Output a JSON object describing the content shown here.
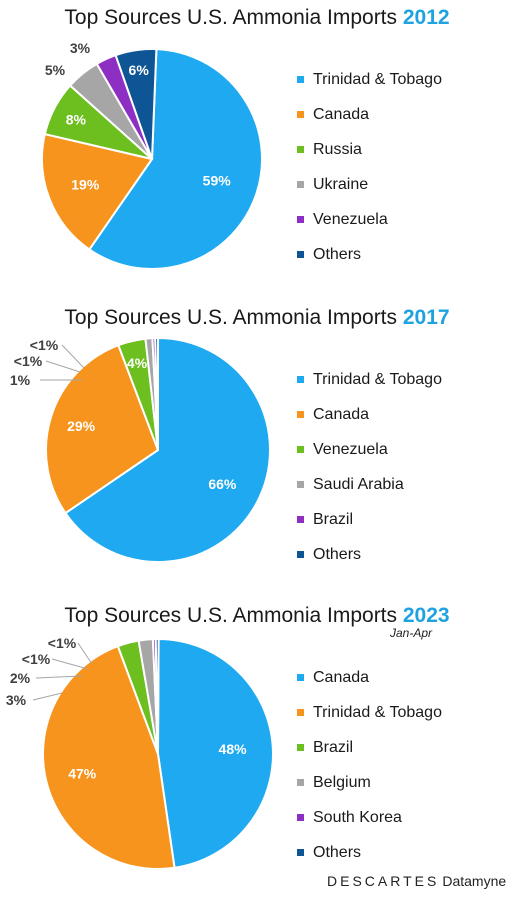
{
  "charts": [
    {
      "title": "Top Sources U.S. Ammonia Imports",
      "year": "2012",
      "subtitle": "",
      "legend": [
        {
          "label": "Trinidad & Tobago",
          "color": "#1fa9f0"
        },
        {
          "label": "Canada",
          "color": "#f7941d"
        },
        {
          "label": "Russia",
          "color": "#6cbf1f"
        },
        {
          "label": "Ukraine",
          "color": "#a6a6a6"
        },
        {
          "label": "Venezuela",
          "color": "#8e2fc4"
        },
        {
          "label": "Others",
          "color": "#0e5596"
        }
      ]
    },
    {
      "title": "Top Sources U.S. Ammonia Imports",
      "year": "2017",
      "subtitle": "",
      "legend": [
        {
          "label": "Trinidad & Tobago",
          "color": "#1fa9f0"
        },
        {
          "label": "Canada",
          "color": "#f7941d"
        },
        {
          "label": "Venezuela",
          "color": "#6cbf1f"
        },
        {
          "label": "Saudi Arabia",
          "color": "#a6a6a6"
        },
        {
          "label": "Brazil",
          "color": "#8e2fc4"
        },
        {
          "label": "Others",
          "color": "#0e5596"
        }
      ]
    },
    {
      "title": "Top Sources U.S. Ammonia Imports",
      "year": "2023",
      "subtitle": "Jan-Apr",
      "legend": [
        {
          "label": "Canada",
          "color": "#1fa9f0"
        },
        {
          "label": "Trinidad & Tobago",
          "color": "#f7941d"
        },
        {
          "label": "Brazil",
          "color": "#6cbf1f"
        },
        {
          "label": "Belgium",
          "color": "#a6a6a6"
        },
        {
          "label": "South Korea",
          "color": "#8e2fc4"
        },
        {
          "label": "Others",
          "color": "#0e5596"
        }
      ]
    }
  ],
  "chart_data": [
    {
      "type": "pie",
      "title": "Top Sources U.S. Ammonia Imports 2012",
      "legend_position": "right",
      "slices": [
        {
          "label": "Trinidad & Tobago",
          "value": 59,
          "display": "59%",
          "color": "#1fa9f0"
        },
        {
          "label": "Canada",
          "value": 19,
          "display": "19%",
          "color": "#f7941d"
        },
        {
          "label": "Russia",
          "value": 8,
          "display": "8%",
          "color": "#6cbf1f"
        },
        {
          "label": "Ukraine",
          "value": 5,
          "display": "5%",
          "color": "#a6a6a6"
        },
        {
          "label": "Venezuela",
          "value": 3,
          "display": "3%",
          "color": "#8e2fc4"
        },
        {
          "label": "Others",
          "value": 6,
          "display": "6%",
          "color": "#0e5596"
        }
      ]
    },
    {
      "type": "pie",
      "title": "Top Sources U.S. Ammonia Imports 2017",
      "legend_position": "right",
      "slices": [
        {
          "label": "Trinidad & Tobago",
          "value": 66,
          "display": "66%",
          "color": "#1fa9f0"
        },
        {
          "label": "Canada",
          "value": 29,
          "display": "29%",
          "color": "#f7941d"
        },
        {
          "label": "Venezuela",
          "value": 4,
          "display": "4%",
          "color": "#6cbf1f"
        },
        {
          "label": "Saudi Arabia",
          "value": 1,
          "display": "1%",
          "color": "#a6a6a6"
        },
        {
          "label": "Brazil",
          "value": 0.4,
          "display": "<1%",
          "color": "#8e2fc4"
        },
        {
          "label": "Others",
          "value": 0.4,
          "display": "<1%",
          "color": "#0e5596"
        }
      ]
    },
    {
      "type": "pie",
      "title": "Top Sources U.S. Ammonia Imports 2023 Jan-Apr",
      "legend_position": "right",
      "slices": [
        {
          "label": "Canada",
          "value": 48,
          "display": "48%",
          "color": "#1fa9f0"
        },
        {
          "label": "Trinidad & Tobago",
          "value": 47,
          "display": "47%",
          "color": "#f7941d"
        },
        {
          "label": "Brazil",
          "value": 3,
          "display": "3%",
          "color": "#6cbf1f"
        },
        {
          "label": "Belgium",
          "value": 2,
          "display": "2%",
          "color": "#a6a6a6"
        },
        {
          "label": "South Korea",
          "value": 0.4,
          "display": "<1%",
          "color": "#8e2fc4"
        },
        {
          "label": "Others",
          "value": 0.4,
          "display": "<1%",
          "color": "#0e5596"
        }
      ]
    }
  ],
  "footer": {
    "brand": "DESCARTES",
    "product": "Datamyne"
  }
}
